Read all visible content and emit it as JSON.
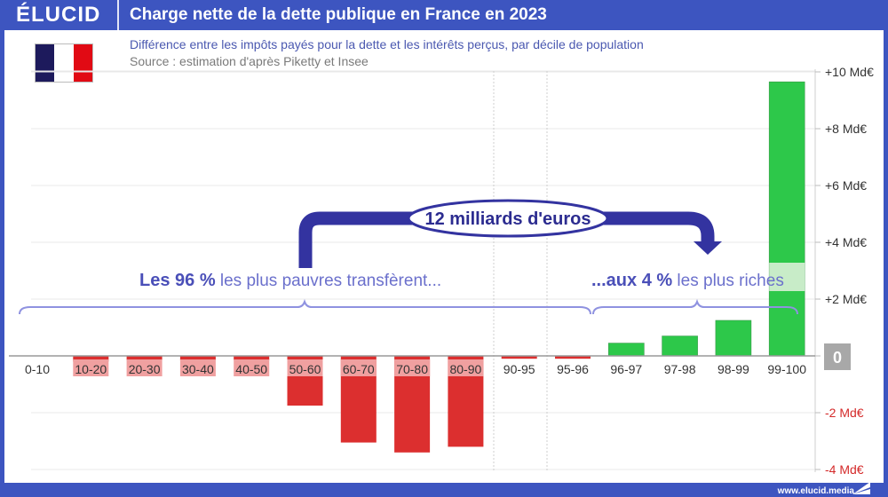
{
  "header": {
    "logo": "ÉLUCID",
    "title": "Charge nette de la dette publique en France en 2023"
  },
  "subtitle": "Différence entre les impôts payés pour la dette et les intérêts perçus, par décile de population",
  "source": "Source : estimation d'après Piketty et Insee",
  "flag": {
    "colors": [
      "#1d1a5c",
      "#ffffff",
      "#e10a14"
    ]
  },
  "footer": {
    "url": "www.elucid.media"
  },
  "annotations": {
    "bubble": "12 milliards d'euros",
    "left_bold": "Les 96 %",
    "left_light": " les plus pauvres transfèrent...",
    "right_bold": "...aux 4 %",
    "right_light": " les plus riches"
  },
  "colors": {
    "negative": "#dc2f2f",
    "negative_light": "#f0a0a0",
    "positive": "#2dc84a",
    "positive_light": "#c8ecc8",
    "arrow": "#3333a0",
    "brace": "#8f92e0",
    "axis_zero_badge": "#a8a8a8"
  },
  "chart_data": {
    "type": "bar",
    "title": "Charge nette de la dette publique en France en 2023",
    "subtitle": "Différence entre les impôts payés pour la dette et les intérêts perçus, par décile de population",
    "xlabel": "",
    "ylabel": "Md€",
    "categories": [
      "0-10",
      "10-20",
      "20-30",
      "30-40",
      "40-50",
      "50-60",
      "60-70",
      "70-80",
      "80-90",
      "90-95",
      "95-96",
      "96-97",
      "97-98",
      "98-99",
      "99-100"
    ],
    "values": [
      0,
      -0.2,
      -0.15,
      -0.15,
      -0.15,
      -1.75,
      -3.05,
      -3.4,
      -3.2,
      -0.1,
      -0.1,
      0.45,
      0.7,
      1.25,
      9.65
    ],
    "ylim": [
      -4,
      10
    ],
    "yticks": [
      {
        "value": 10,
        "label": "+10 Md€"
      },
      {
        "value": 8,
        "label": "+8 Md€"
      },
      {
        "value": 6,
        "label": "+6 Md€"
      },
      {
        "value": 4,
        "label": "+4 Md€"
      },
      {
        "value": 2,
        "label": "+2 Md€"
      },
      {
        "value": 0,
        "label": "0"
      },
      {
        "value": -2,
        "label": "-2 Md€"
      },
      {
        "value": -4,
        "label": "-4 Md€"
      }
    ],
    "grid": true,
    "legend": null,
    "annotations": [
      "12 milliards d'euros",
      "Les 96 % les plus pauvres transfèrent...",
      "...aux 4 % les plus riches"
    ]
  }
}
